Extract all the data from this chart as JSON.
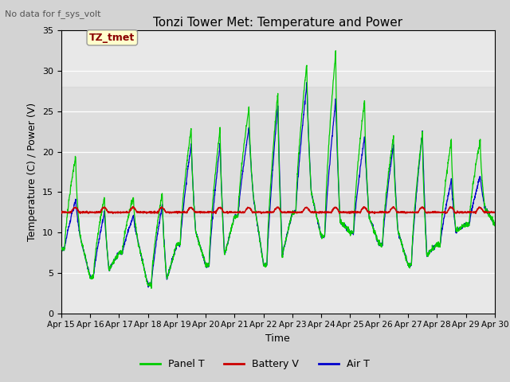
{
  "title": "Tonzi Tower Met: Temperature and Power",
  "subtitle": "No data for f_sys_volt",
  "xlabel": "Time",
  "ylabel": "Temperature (C) / Power (V)",
  "ylim": [
    0,
    35
  ],
  "xlim": [
    0,
    15
  ],
  "xtick_labels": [
    "Apr 15",
    "Apr 16",
    "Apr 17",
    "Apr 18",
    "Apr 19",
    "Apr 20",
    "Apr 21",
    "Apr 22",
    "Apr 23",
    "Apr 24",
    "Apr 25",
    "Apr 26",
    "Apr 27",
    "Apr 28",
    "Apr 29",
    "Apr 30"
  ],
  "ytick_values": [
    0,
    5,
    10,
    15,
    20,
    25,
    30,
    35
  ],
  "legend_label": "TZ_tmet",
  "line_labels": [
    "Panel T",
    "Battery V",
    "Air T"
  ],
  "line_colors": [
    "#00cc00",
    "#cc0000",
    "#0000cc"
  ],
  "panel_day_peaks": [
    19.5,
    14.5,
    14.5,
    15.0,
    23.0,
    23.0,
    25.5,
    27.5,
    31.0,
    32.5,
    26.5,
    22.0,
    22.5,
    21.5,
    21.5
  ],
  "air_day_peaks": [
    14.0,
    12.5,
    12.0,
    13.5,
    21.0,
    21.0,
    23.0,
    26.0,
    28.5,
    26.5,
    22.0,
    21.0,
    22.5,
    16.5,
    17.0
  ],
  "night_min": [
    8.0,
    4.5,
    7.5,
    3.5,
    8.5,
    6.0,
    12.0,
    6.0,
    12.5,
    9.5,
    10.0,
    8.5,
    6.0,
    8.5,
    11.0
  ],
  "battery_base": 12.5,
  "shaded_band": [
    12,
    28
  ],
  "fig_facecolor": "#d3d3d3",
  "ax_facecolor": "#e8e8e8",
  "grid_color": "#ffffff"
}
